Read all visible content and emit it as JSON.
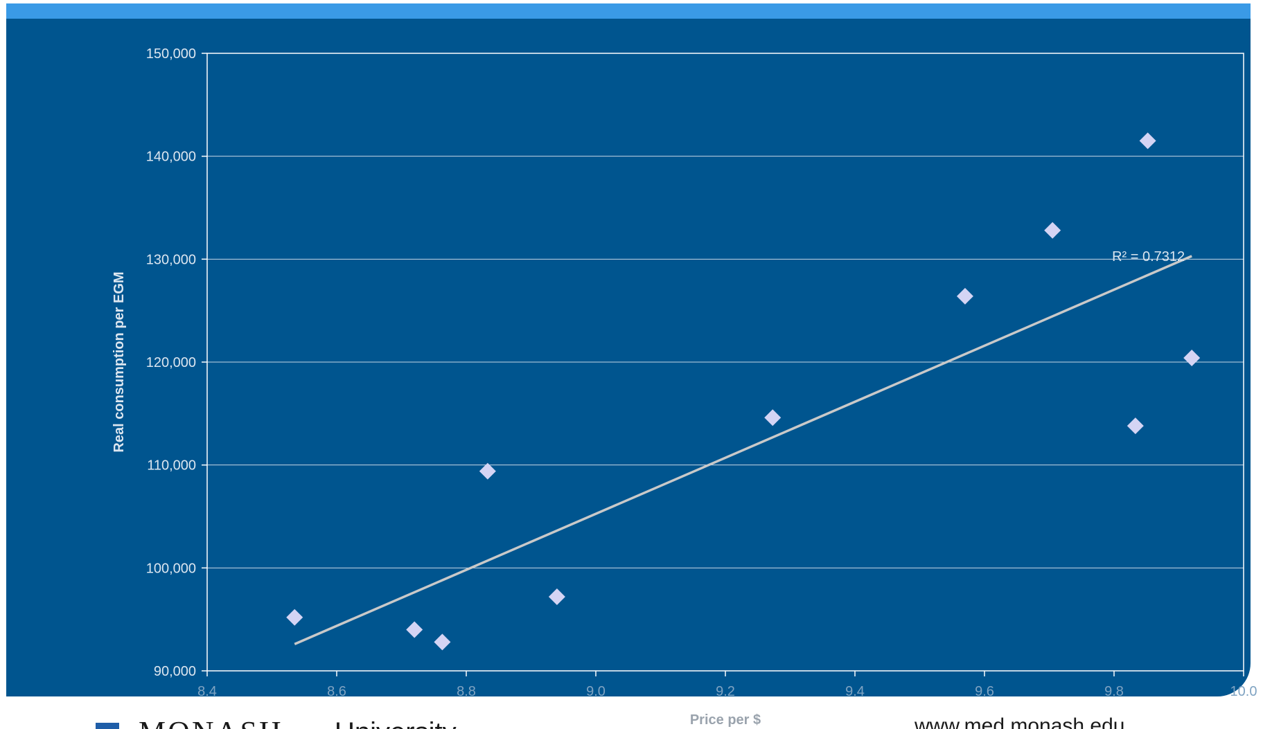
{
  "colors": {
    "panel_background": "#00558f",
    "top_stripe": "#3a9ae6",
    "gridline": "#c8d6e4",
    "marker": "#d4d4f4",
    "trendline": "#c9c9c9"
  },
  "chart_data": {
    "type": "scatter",
    "title": "",
    "xlabel": "Price per $",
    "ylabel": "Real consumption per EGM",
    "xlim": [
      8.4,
      10.0
    ],
    "ylim": [
      90000,
      150000
    ],
    "x_ticks": [
      "8.4",
      "8.6",
      "8.8",
      "9.0",
      "9.2",
      "9.4",
      "9.6",
      "9.8",
      "10.0"
    ],
    "y_ticks": [
      "90,000",
      "100,000",
      "110,000",
      "120,000",
      "130,000",
      "140,000",
      "150,000"
    ],
    "grid": true,
    "marker": "diamond",
    "points": [
      {
        "x": 8.535,
        "y": 95200
      },
      {
        "x": 8.72,
        "y": 94000
      },
      {
        "x": 8.763,
        "y": 92800
      },
      {
        "x": 8.833,
        "y": 109400
      },
      {
        "x": 8.94,
        "y": 97200
      },
      {
        "x": 9.273,
        "y": 114600
      },
      {
        "x": 9.57,
        "y": 126400
      },
      {
        "x": 9.705,
        "y": 132800
      },
      {
        "x": 9.833,
        "y": 113800
      },
      {
        "x": 9.852,
        "y": 141500
      },
      {
        "x": 9.92,
        "y": 120400
      }
    ],
    "trendline": {
      "type": "linear",
      "start": {
        "x": 8.535,
        "y": 92600
      },
      "end": {
        "x": 9.92,
        "y": 130300
      },
      "r2_label": "R² = 0.7312",
      "r2_value": 0.7312
    }
  },
  "footer": {
    "logo_monash": "MONASH",
    "logo_university": "University",
    "url": "www.med.monash.edu"
  }
}
